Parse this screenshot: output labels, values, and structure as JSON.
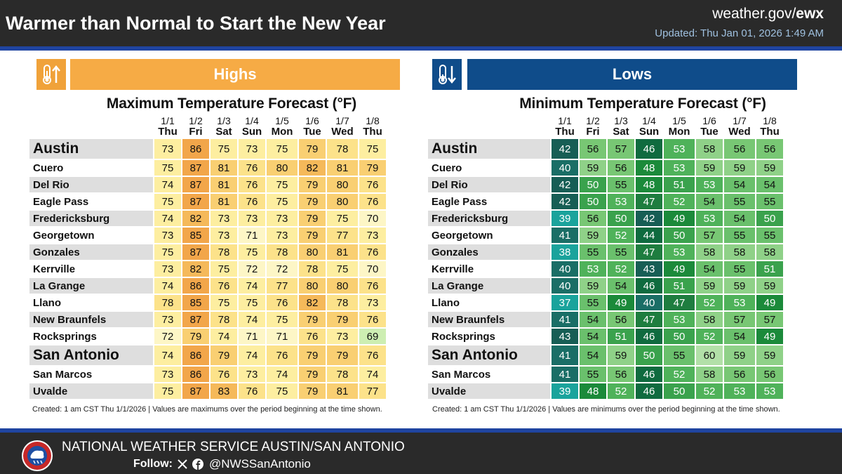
{
  "header": {
    "title": "Warmer than Normal to Start the New Year",
    "site_prefix": "weather.gov/",
    "site_office": "ewx",
    "updated": "Updated: Thu Jan 01, 2026 1:49 AM"
  },
  "highs": {
    "banner": "Highs",
    "title": "Maximum Temperature Forecast (°F)",
    "note": "Created: 1 am CST Thu 1/1/2026  |  Values are maximums over the period beginning at the time shown."
  },
  "lows": {
    "banner": "Lows",
    "title": "Minimum Temperature Forecast (°F)",
    "note": "Created: 1 am CST Thu 1/1/2026  |  Values are minimums over the period beginning at the time shown."
  },
  "columns": [
    {
      "date": "1/1",
      "day": "Thu"
    },
    {
      "date": "1/2",
      "day": "Fri"
    },
    {
      "date": "1/3",
      "day": "Sat"
    },
    {
      "date": "1/4",
      "day": "Sun"
    },
    {
      "date": "1/5",
      "day": "Mon"
    },
    {
      "date": "1/6",
      "day": "Tue"
    },
    {
      "date": "1/7",
      "day": "Wed"
    },
    {
      "date": "1/8",
      "day": "Thu"
    }
  ],
  "rows": [
    {
      "city": "Austin",
      "big": true,
      "highs": [
        73,
        86,
        75,
        73,
        75,
        79,
        78,
        75
      ],
      "lows": [
        42,
        56,
        57,
        46,
        53,
        58,
        56,
        56
      ]
    },
    {
      "city": "Cuero",
      "highs": [
        75,
        87,
        81,
        76,
        80,
        82,
        81,
        79
      ],
      "lows": [
        40,
        59,
        56,
        48,
        53,
        59,
        59,
        59
      ]
    },
    {
      "city": "Del Rio",
      "highs": [
        74,
        87,
        81,
        76,
        75,
        79,
        80,
        76
      ],
      "lows": [
        42,
        50,
        55,
        48,
        51,
        53,
        54,
        54
      ]
    },
    {
      "city": "Eagle Pass",
      "highs": [
        75,
        87,
        81,
        76,
        75,
        79,
        80,
        76
      ],
      "lows": [
        42,
        50,
        53,
        47,
        52,
        54,
        55,
        55
      ]
    },
    {
      "city": "Fredericksburg",
      "highs": [
        74,
        82,
        73,
        73,
        73,
        79,
        75,
        70
      ],
      "lows": [
        39,
        56,
        50,
        42,
        49,
        53,
        54,
        50
      ]
    },
    {
      "city": "Georgetown",
      "highs": [
        73,
        85,
        73,
        71,
        73,
        79,
        77,
        73
      ],
      "lows": [
        41,
        59,
        52,
        44,
        50,
        57,
        55,
        55
      ]
    },
    {
      "city": "Gonzales",
      "highs": [
        75,
        87,
        78,
        75,
        78,
        80,
        81,
        76
      ],
      "lows": [
        38,
        55,
        55,
        47,
        53,
        58,
        58,
        58
      ]
    },
    {
      "city": "Kerrville",
      "highs": [
        73,
        82,
        75,
        72,
        72,
        78,
        75,
        70
      ],
      "lows": [
        40,
        53,
        52,
        43,
        49,
        54,
        55,
        51
      ]
    },
    {
      "city": "La Grange",
      "highs": [
        74,
        86,
        76,
        74,
        77,
        80,
        80,
        76
      ],
      "lows": [
        40,
        59,
        54,
        46,
        51,
        59,
        59,
        59
      ]
    },
    {
      "city": "Llano",
      "highs": [
        78,
        85,
        75,
        75,
        76,
        82,
        78,
        73
      ],
      "lows": [
        37,
        55,
        49,
        40,
        47,
        52,
        53,
        49
      ]
    },
    {
      "city": "New Braunfels",
      "highs": [
        73,
        87,
        78,
        74,
        75,
        79,
        79,
        76
      ],
      "lows": [
        41,
        54,
        56,
        47,
        53,
        58,
        57,
        57
      ]
    },
    {
      "city": "Rocksprings",
      "highs": [
        72,
        79,
        74,
        71,
        71,
        76,
        73,
        69
      ],
      "lows": [
        43,
        54,
        51,
        46,
        50,
        52,
        54,
        49
      ]
    },
    {
      "city": "San Antonio",
      "big": true,
      "highs": [
        74,
        86,
        79,
        74,
        76,
        79,
        79,
        76
      ],
      "lows": [
        41,
        54,
        59,
        50,
        55,
        60,
        59,
        59
      ]
    },
    {
      "city": "San Marcos",
      "highs": [
        73,
        86,
        76,
        73,
        74,
        79,
        78,
        74
      ],
      "lows": [
        41,
        55,
        56,
        46,
        52,
        58,
        56,
        56
      ]
    },
    {
      "city": "Uvalde",
      "highs": [
        75,
        87,
        83,
        76,
        75,
        79,
        81,
        77
      ],
      "lows": [
        39,
        48,
        52,
        46,
        50,
        52,
        53,
        53
      ]
    }
  ],
  "footer": {
    "office": "NATIONAL WEATHER SERVICE AUSTIN/SAN ANTONIO",
    "follow": "Follow:",
    "handle": "@NWSSanAntonio",
    "logo_text": "NATIONAL WEATHER SERVICE"
  }
}
